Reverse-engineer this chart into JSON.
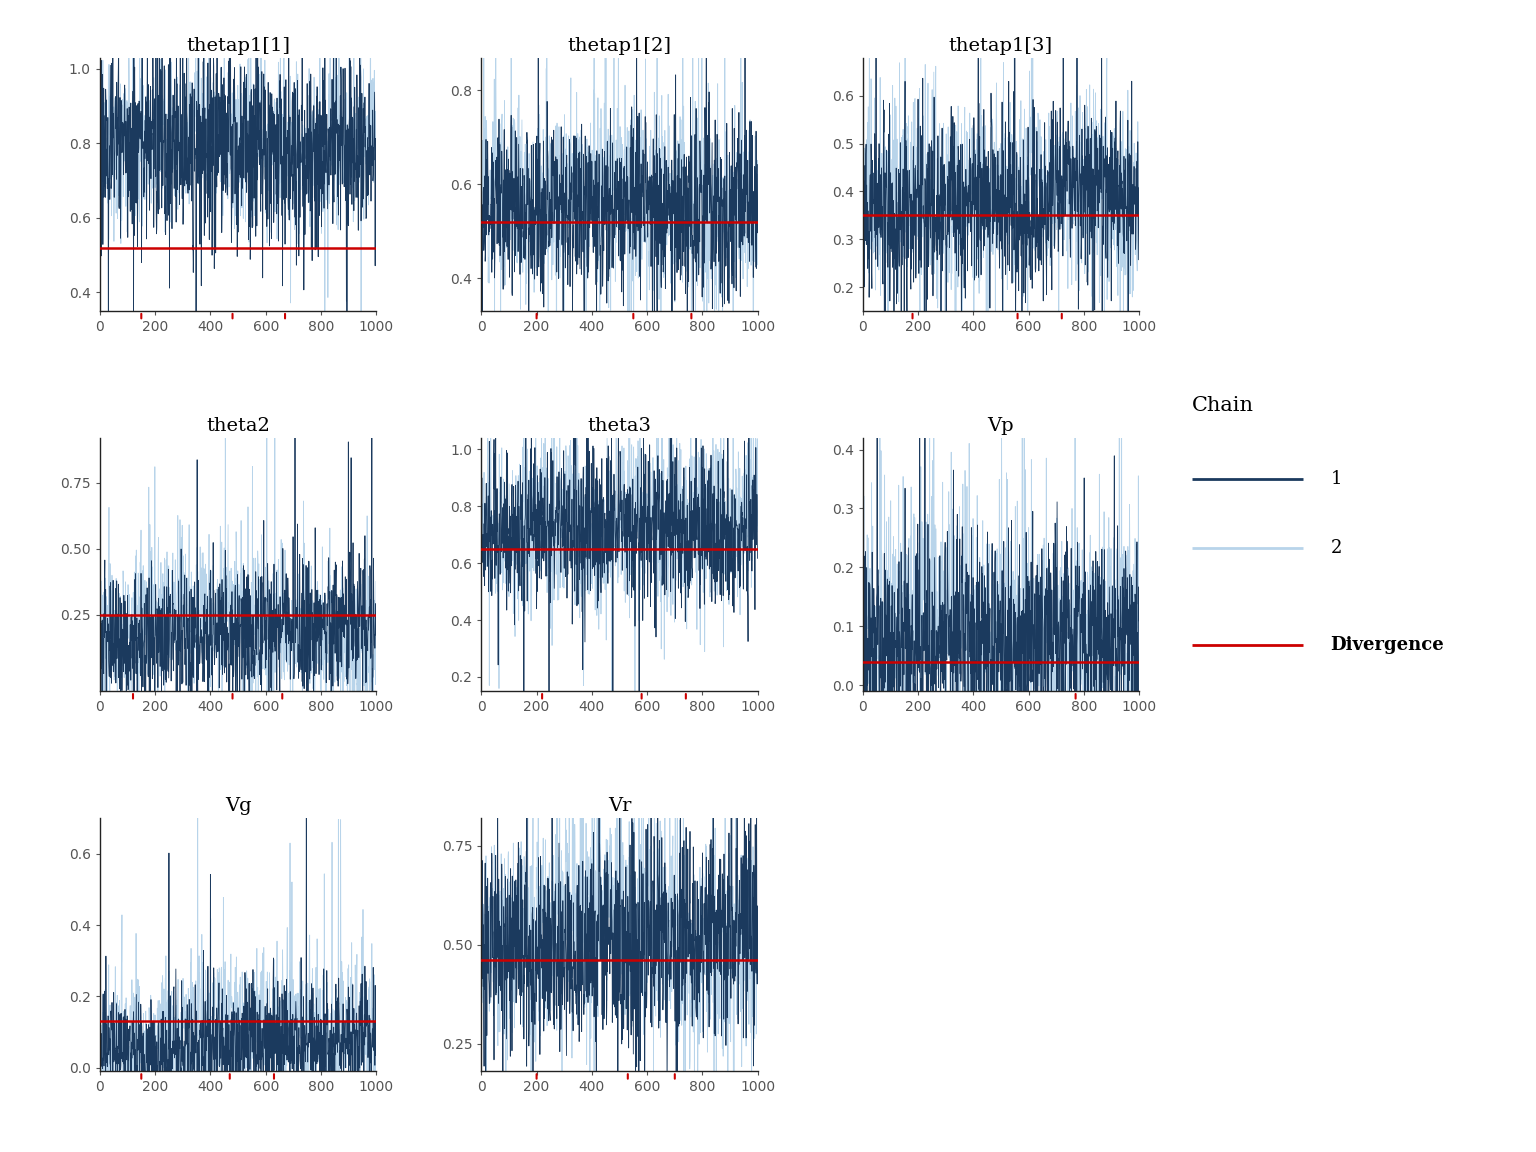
{
  "panels": [
    {
      "title": "thetap1[1]",
      "mean": 0.52,
      "ylim": [
        0.35,
        1.03
      ],
      "yticks": [
        0.4,
        0.6,
        0.8,
        1.0
      ],
      "c1_base": 0.78,
      "c1_scale": 0.13,
      "c2_base": 0.8,
      "c2_scale": 0.1,
      "divergences": [
        150,
        480,
        670
      ],
      "row": 0,
      "col": 0
    },
    {
      "title": "thetap1[2]",
      "mean": 0.52,
      "ylim": [
        0.33,
        0.87
      ],
      "yticks": [
        0.4,
        0.6,
        0.8
      ],
      "c1_base": 0.55,
      "c1_scale": 0.09,
      "c2_base": 0.57,
      "c2_scale": 0.1,
      "divergences": [
        200,
        550,
        760
      ],
      "row": 0,
      "col": 1
    },
    {
      "title": "thetap1[3]",
      "mean": 0.35,
      "ylim": [
        0.15,
        0.68
      ],
      "yticks": [
        0.2,
        0.3,
        0.4,
        0.5,
        0.6
      ],
      "c1_base": 0.38,
      "c1_scale": 0.09,
      "c2_base": 0.39,
      "c2_scale": 0.1,
      "divergences": [
        180,
        560,
        720
      ],
      "row": 0,
      "col": 2
    },
    {
      "title": "theta2",
      "mean": 0.25,
      "ylim": [
        -0.04,
        0.92
      ],
      "yticks": [
        0.25,
        0.5,
        0.75
      ],
      "c1_base": 0.18,
      "c1_scale": 0.12,
      "c2_base": 0.2,
      "c2_scale": 0.14,
      "divergences": [
        120,
        480,
        660
      ],
      "row": 1,
      "col": 0
    },
    {
      "title": "theta3",
      "mean": 0.65,
      "ylim": [
        0.15,
        1.04
      ],
      "yticks": [
        0.2,
        0.4,
        0.6,
        0.8,
        1.0
      ],
      "c1_base": 0.72,
      "c1_scale": 0.13,
      "c2_base": 0.74,
      "c2_scale": 0.15,
      "divergences": [
        220,
        580,
        740
      ],
      "row": 1,
      "col": 1
    },
    {
      "title": "Vp",
      "mean": 0.04,
      "ylim": [
        -0.01,
        0.42
      ],
      "yticks": [
        0.0,
        0.1,
        0.2,
        0.3,
        0.4
      ],
      "c1_base": 0.08,
      "c1_scale": 0.09,
      "c2_base": 0.1,
      "c2_scale": 0.11,
      "divergences": [
        770
      ],
      "row": 1,
      "col": 2
    },
    {
      "title": "Vg",
      "mean": 0.13,
      "ylim": [
        -0.01,
        0.7
      ],
      "yticks": [
        0.0,
        0.2,
        0.4,
        0.6
      ],
      "c1_base": 0.07,
      "c1_scale": 0.08,
      "c2_base": 0.09,
      "c2_scale": 0.11,
      "divergences": [
        150,
        470,
        630
      ],
      "row": 2,
      "col": 0
    },
    {
      "title": "Vr",
      "mean": 0.46,
      "ylim": [
        0.18,
        0.82
      ],
      "yticks": [
        0.25,
        0.5,
        0.75
      ],
      "c1_base": 0.5,
      "c1_scale": 0.13,
      "c2_base": 0.52,
      "c2_scale": 0.14,
      "divergences": [
        200,
        530,
        700
      ],
      "row": 2,
      "col": 1
    }
  ],
  "n_iter": 1000,
  "chain1_color": "#1b3a5e",
  "chain2_color": "#b8d4ea",
  "divergence_color": "#cc0000",
  "mean_color": "#cc0000",
  "background_color": "#ffffff",
  "title_fontsize": 14,
  "tick_fontsize": 10,
  "legend_title_fontsize": 15,
  "legend_fontsize": 13
}
